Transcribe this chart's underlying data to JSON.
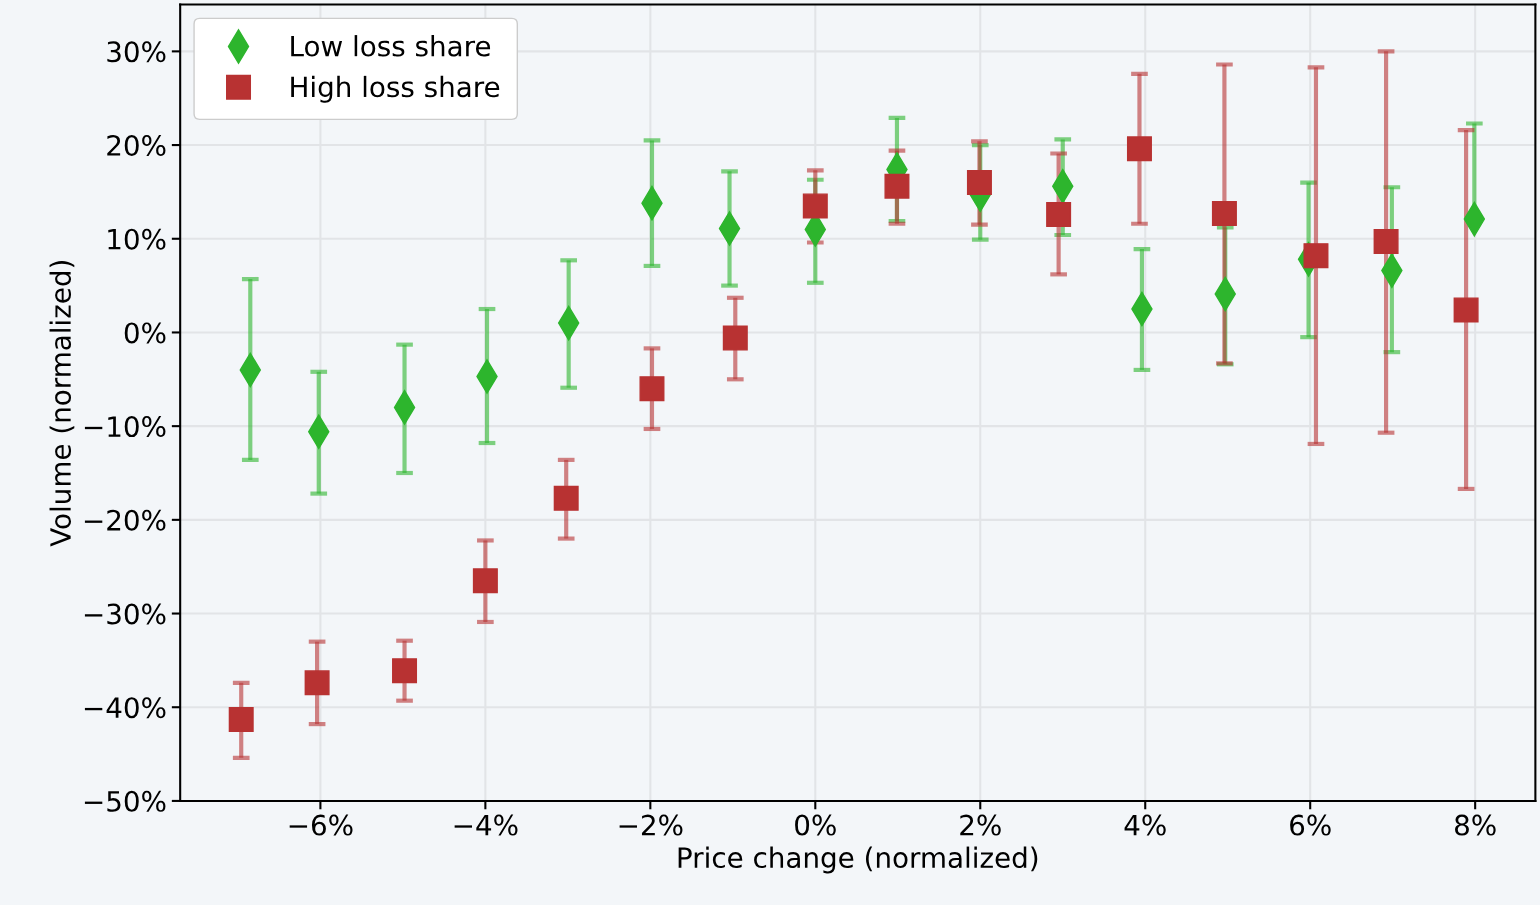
{
  "chart_data": {
    "type": "scatter",
    "xlabel": "Price change (normalized)",
    "ylabel": "Volume (normalized)",
    "xlim": [
      -7.7,
      8.73
    ],
    "ylim": [
      -50,
      35
    ],
    "xticks": [
      {
        "value": -6,
        "label": "−6%"
      },
      {
        "value": -4,
        "label": "−4%"
      },
      {
        "value": -2,
        "label": "−2%"
      },
      {
        "value": 0,
        "label": "0%"
      },
      {
        "value": 2,
        "label": "2%"
      },
      {
        "value": 4,
        "label": "4%"
      },
      {
        "value": 6,
        "label": "6%"
      },
      {
        "value": 8,
        "label": "8%"
      }
    ],
    "yticks": [
      {
        "value": -50,
        "label": "−50%"
      },
      {
        "value": -40,
        "label": "−40%"
      },
      {
        "value": -30,
        "label": "−30%"
      },
      {
        "value": -20,
        "label": "−20%"
      },
      {
        "value": -10,
        "label": "−10%"
      },
      {
        "value": 0,
        "label": "0%"
      },
      {
        "value": 10,
        "label": "10%"
      },
      {
        "value": 20,
        "label": "20%"
      },
      {
        "value": 30,
        "label": "30%"
      }
    ],
    "grid": true,
    "legend": "top left",
    "series": [
      {
        "name": "Low loss share",
        "color": "#2db52d",
        "marker": "diamond",
        "x": [
          -6.85,
          -6.02,
          -4.98,
          -3.98,
          -2.99,
          -1.98,
          -1.04,
          0,
          0.99,
          2.0,
          3.0,
          3.96,
          4.97,
          5.98,
          6.99,
          7.99
        ],
        "values": [
          -4.0,
          -10.6,
          -8.0,
          -4.7,
          1.0,
          13.8,
          11.1,
          11.0,
          17.4,
          14.7,
          15.6,
          2.5,
          4.1,
          7.8,
          6.6,
          12.1
        ],
        "errors": [
          [
            -13.6,
            5.7
          ],
          [
            -17.2,
            -4.2
          ],
          [
            -15.0,
            -1.3
          ],
          [
            -11.8,
            2.5
          ],
          [
            -5.9,
            7.7
          ],
          [
            7.1,
            20.5
          ],
          [
            5.0,
            17.2
          ],
          [
            5.3,
            16.3
          ],
          [
            11.9,
            22.9
          ],
          [
            9.9,
            20.0
          ],
          [
            10.4,
            20.6
          ],
          [
            -4.0,
            8.9
          ],
          [
            -3.4,
            11.2
          ],
          [
            -0.5,
            16.0
          ],
          [
            -2.1,
            15.5
          ],
          [
            12.1,
            22.3
          ]
        ]
      },
      {
        "name": "High loss share",
        "color": "#b83232",
        "marker": "square",
        "x": [
          -6.96,
          -6.04,
          -4.98,
          -4.0,
          -3.02,
          -1.98,
          -0.97,
          0,
          0.99,
          1.99,
          2.95,
          3.93,
          4.96,
          6.07,
          6.92,
          7.89
        ],
        "values": [
          -41.3,
          -37.4,
          -36.1,
          -26.5,
          -17.7,
          -6.0,
          -0.6,
          13.5,
          15.6,
          16.0,
          12.6,
          19.6,
          12.7,
          8.2,
          9.7,
          2.4
        ],
        "errors": [
          [
            -45.4,
            -37.4
          ],
          [
            -41.8,
            -33.0
          ],
          [
            -39.3,
            -32.9
          ],
          [
            -30.9,
            -22.2
          ],
          [
            -22.0,
            -13.6
          ],
          [
            -10.3,
            -1.7
          ],
          [
            -5.0,
            3.7
          ],
          [
            9.6,
            17.3
          ],
          [
            11.6,
            19.4
          ],
          [
            11.5,
            20.4
          ],
          [
            6.2,
            19.1
          ],
          [
            11.6,
            27.6
          ],
          [
            -3.3,
            28.6
          ],
          [
            -11.9,
            28.3
          ],
          [
            -10.7,
            30.0
          ],
          [
            -16.7,
            21.6
          ]
        ]
      }
    ]
  }
}
